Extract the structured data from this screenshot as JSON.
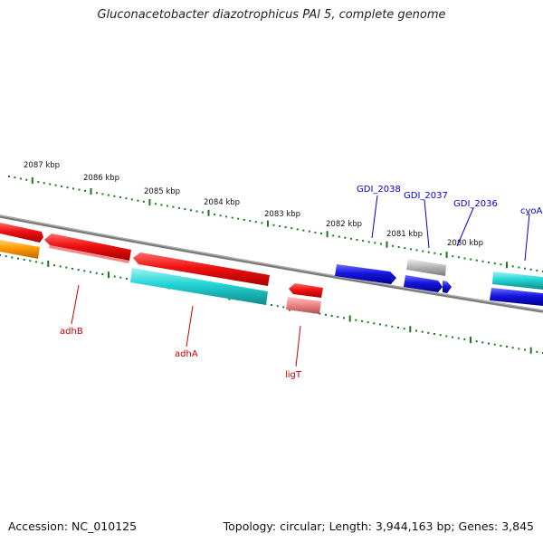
{
  "title": "Gluconacetobacter diazotrophicus PAl 5, complete genome",
  "footer": {
    "accession": "Accession: NC_010125",
    "summary": "Topology: circular; Length: 3,944,163 bp; Genes: 3,845"
  },
  "ticks": [
    "2087 kbp",
    "2086 kbp",
    "2085 kbp",
    "2084 kbp",
    "2083 kbp",
    "2082 kbp",
    "2081 kbp",
    "2080 kbp"
  ],
  "gene_labels": {
    "adhB": "adhB",
    "adhA": "adhA",
    "ligT": "ligT",
    "GDI_2038": "GDI_2038",
    "GDI_2037": "GDI_2037",
    "GDI_2036": "GDI_2036",
    "cyoA": "cyoA"
  },
  "colors": {
    "label_red": "#cc0000",
    "label_blue": "#0000cc",
    "tick_green": "#1a7a1a",
    "backbone": "#7a7a7a",
    "red": "#ee1111",
    "cyan": "#22d4d4",
    "blue": "#1515e0",
    "orange": "#ff9900",
    "gray": "#b8b8b8",
    "pink": "#f08888"
  }
}
